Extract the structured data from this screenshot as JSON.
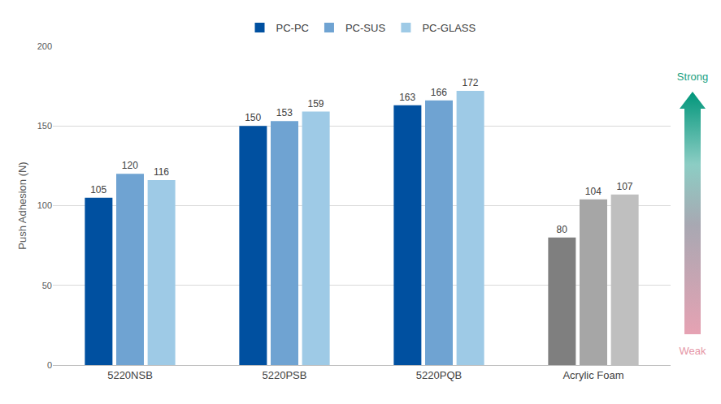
{
  "chart_data": {
    "type": "bar",
    "categories": [
      "5220NSB",
      "5220PSB",
      "5220PQB",
      "Acrylic Foam"
    ],
    "y_label": "Push Adhesion (N)",
    "series": [
      {
        "name": "PC-PC",
        "color": "#0050a0",
        "colors": [
          "#0050a0",
          "#0050a0",
          "#0050a0",
          "#7f7f7f"
        ],
        "values": [
          105,
          150,
          163,
          80
        ]
      },
      {
        "name": "PC-SUS",
        "color": "#6fa3d2",
        "colors": [
          "#6fa3d2",
          "#6fa3d2",
          "#6fa3d2",
          "#a6a6a6"
        ],
        "values": [
          120,
          153,
          166,
          104
        ]
      },
      {
        "name": "PC-GLASS",
        "color": "#9ecae6",
        "colors": [
          "#9ecae6",
          "#9ecae6",
          "#9ecae6",
          "#bfbfbf"
        ],
        "values": [
          116,
          159,
          172,
          107
        ]
      }
    ],
    "ylim": [
      0,
      200
    ],
    "yticks": [
      0,
      50,
      100,
      150,
      200
    ],
    "grid": true,
    "data_labels": true,
    "legend": "top",
    "annotations": [
      "Strong",
      "Weak"
    ]
  }
}
